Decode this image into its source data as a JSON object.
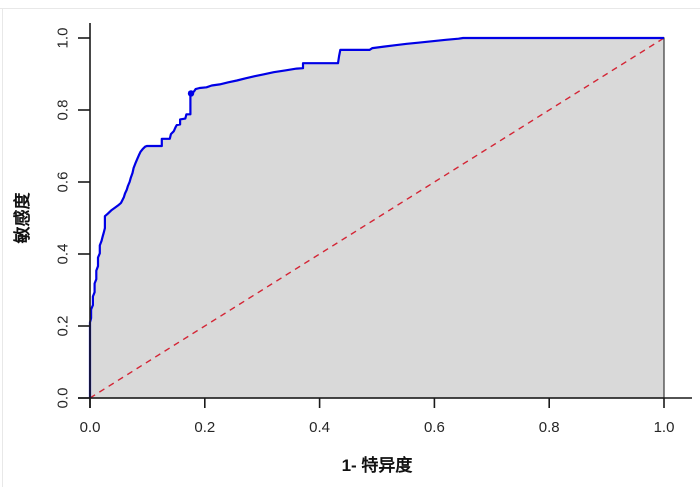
{
  "chart_data": {
    "type": "line",
    "title": "",
    "xlabel": "1- 特异度",
    "ylabel": "敏感度",
    "xlim": [
      0,
      1
    ],
    "ylim": [
      0,
      1
    ],
    "grid": false,
    "legend": "none",
    "x_tick_values": [
      0,
      0.2,
      0.4,
      0.6,
      0.8,
      1.0
    ],
    "x_tick_labels": [
      "0.0",
      "0.2",
      "0.4",
      "0.6",
      "0.8",
      "1.0"
    ],
    "y_tick_values": [
      0,
      0.2,
      0.4,
      0.6,
      0.8,
      1.0
    ],
    "y_tick_labels": [
      "0.0",
      "0.2",
      "0.4",
      "0.6",
      "0.8",
      "1.0"
    ],
    "axis_color": "#1a1a1a",
    "tick_label_color": "#262626",
    "auc_fill": {
      "color": "#d9d9d9",
      "border_color": "#383838",
      "border_width": 1.2
    },
    "marker_point": {
      "x": 0.176,
      "y": 0.846,
      "color": "#0000e6",
      "radius": 3.2
    },
    "series": [
      {
        "name": "ROC curve",
        "role": "roc",
        "color": "#0000e6",
        "width": 2.2,
        "line_style": "solid",
        "points": [
          [
            0,
            0
          ],
          [
            0,
            0.21
          ],
          [
            0.002,
            0.222
          ],
          [
            0.002,
            0.246
          ],
          [
            0.005,
            0.258
          ],
          [
            0.005,
            0.282
          ],
          [
            0.008,
            0.294
          ],
          [
            0.008,
            0.318
          ],
          [
            0.011,
            0.33
          ],
          [
            0.011,
            0.354
          ],
          [
            0.014,
            0.366
          ],
          [
            0.014,
            0.39
          ],
          [
            0.017,
            0.402
          ],
          [
            0.017,
            0.424
          ],
          [
            0.02,
            0.436
          ],
          [
            0.022,
            0.448
          ],
          [
            0.024,
            0.46
          ],
          [
            0.026,
            0.472
          ],
          [
            0.026,
            0.505
          ],
          [
            0.031,
            0.512
          ],
          [
            0.037,
            0.521
          ],
          [
            0.043,
            0.528
          ],
          [
            0.049,
            0.535
          ],
          [
            0.054,
            0.542
          ],
          [
            0.056,
            0.548
          ],
          [
            0.059,
            0.558
          ],
          [
            0.061,
            0.568
          ],
          [
            0.064,
            0.578
          ],
          [
            0.066,
            0.589
          ],
          [
            0.069,
            0.6
          ],
          [
            0.071,
            0.612
          ],
          [
            0.074,
            0.625
          ],
          [
            0.076,
            0.639
          ],
          [
            0.079,
            0.651
          ],
          [
            0.082,
            0.663
          ],
          [
            0.085,
            0.674
          ],
          [
            0.088,
            0.684
          ],
          [
            0.092,
            0.692
          ],
          [
            0.096,
            0.698
          ],
          [
            0.099,
            0.7
          ],
          [
            0.125,
            0.7
          ],
          [
            0.125,
            0.72
          ],
          [
            0.139,
            0.72
          ],
          [
            0.141,
            0.733
          ],
          [
            0.146,
            0.741
          ],
          [
            0.149,
            0.752
          ],
          [
            0.151,
            0.758
          ],
          [
            0.157,
            0.76
          ],
          [
            0.157,
            0.774
          ],
          [
            0.166,
            0.776
          ],
          [
            0.168,
            0.788
          ],
          [
            0.175,
            0.788
          ],
          [
            0.175,
            0.845
          ],
          [
            0.181,
            0.851
          ],
          [
            0.184,
            0.858
          ],
          [
            0.191,
            0.861
          ],
          [
            0.203,
            0.863
          ],
          [
            0.212,
            0.868
          ],
          [
            0.226,
            0.871
          ],
          [
            0.241,
            0.877
          ],
          [
            0.256,
            0.882
          ],
          [
            0.271,
            0.888
          ],
          [
            0.287,
            0.894
          ],
          [
            0.302,
            0.899
          ],
          [
            0.32,
            0.905
          ],
          [
            0.34,
            0.91
          ],
          [
            0.36,
            0.915
          ],
          [
            0.371,
            0.916
          ],
          [
            0.371,
            0.93
          ],
          [
            0.432,
            0.93
          ],
          [
            0.434,
            0.95
          ],
          [
            0.436,
            0.967
          ],
          [
            0.487,
            0.967
          ],
          [
            0.492,
            0.972
          ],
          [
            0.512,
            0.976
          ],
          [
            0.532,
            0.98
          ],
          [
            0.552,
            0.984
          ],
          [
            0.572,
            0.987
          ],
          [
            0.597,
            0.991
          ],
          [
            0.62,
            0.995
          ],
          [
            0.642,
            0.998
          ],
          [
            0.65,
            1
          ],
          [
            1,
            1
          ]
        ]
      },
      {
        "name": "Chance diagonal",
        "role": "reference",
        "color": "#d42535",
        "width": 1.4,
        "line_style": "dashed",
        "dash": "6 5",
        "points": [
          [
            0,
            0
          ],
          [
            1,
            1
          ]
        ]
      }
    ]
  }
}
